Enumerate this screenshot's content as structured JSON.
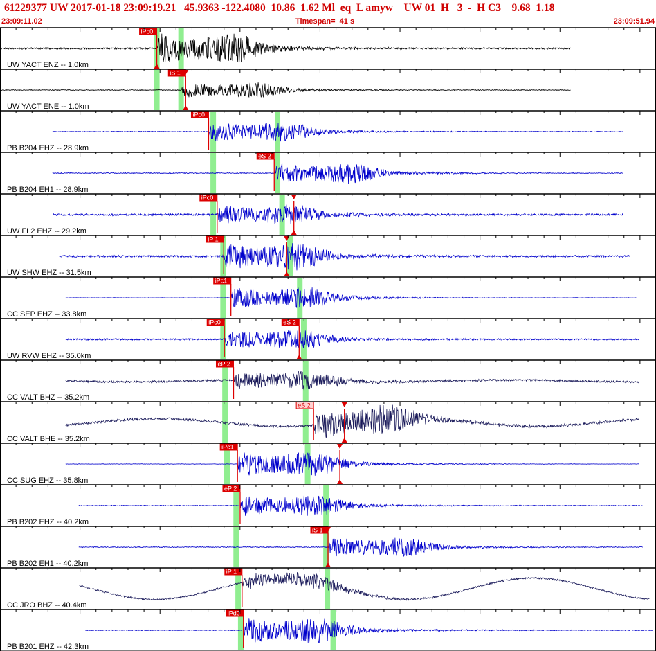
{
  "header": {
    "event_line": "61229377 UW 2017-01-18 23:09:19.21   45.9363 -122.4080  10.86  1.62 Ml  eq  L amyw    UW 01  H   3  -  H C3    9.68  1.18",
    "start_time": "23:09:11.02",
    "timespan": "Timespan=  41 s",
    "end_time": "23:09:51.94"
  },
  "colors": {
    "header_text": "#d00000",
    "pick_red": "#dd0000",
    "pick_bg_light": "#ffd0d0",
    "trace_black": "#000000",
    "trace_blue": "#0000cc",
    "trace_navy": "#1a1a5a",
    "window_green": "#90ee90"
  },
  "panels": [
    {
      "label": "UW YACT ENZ -- 1.0km",
      "trace": "black",
      "trace_start": 0.0,
      "trace_end": 0.87,
      "noise": 0.04,
      "onset": 0.239,
      "amp": 0.85,
      "lowfreq": 0,
      "green": [
        0.239,
        0.276
      ],
      "picks": [
        {
          "text": "iPc0",
          "pos": 0.239,
          "tri_top": false,
          "tri_bottom": true,
          "light": false
        }
      ]
    },
    {
      "label": "UW YACT ENE -- 1.0km",
      "trace": "black",
      "trace_start": 0.0,
      "trace_end": 0.87,
      "noise": 0.02,
      "onset": 0.276,
      "amp": 0.45,
      "lowfreq": 0,
      "green": [
        0.239,
        0.276
      ],
      "picks": [
        {
          "text": "iS 1",
          "pos": 0.283,
          "tri_top": true,
          "tri_bottom": true,
          "light": false
        }
      ]
    },
    {
      "label": "PB B204 EHZ -- 28.9km",
      "trace": "blue",
      "trace_start": 0.08,
      "trace_end": 0.95,
      "noise": 0.02,
      "onset": 0.318,
      "amp": 0.55,
      "lowfreq": 0,
      "green": [
        0.325,
        0.423
      ],
      "picks": [
        {
          "text": "iPc0",
          "pos": 0.318,
          "tri_top": false,
          "tri_bottom": false,
          "light": false
        }
      ]
    },
    {
      "label": "PB B204 EH1 -- 28.9km",
      "trace": "blue",
      "trace_start": 0.08,
      "trace_end": 0.95,
      "noise": 0.02,
      "onset": 0.418,
      "amp": 0.6,
      "lowfreq": 0,
      "green": [
        0.325,
        0.423
      ],
      "picks": [
        {
          "text": "eS 2",
          "pos": 0.418,
          "tri_top": false,
          "tri_bottom": false,
          "light": false
        }
      ]
    },
    {
      "label": "UW FL2 EHZ -- 29.2km",
      "trace": "blue",
      "trace_start": 0.08,
      "trace_end": 0.95,
      "noise": 0.05,
      "onset": 0.331,
      "amp": 0.55,
      "lowfreq": 0,
      "green": [
        0.325,
        0.43
      ],
      "picks": [
        {
          "text": "iPc0",
          "pos": 0.331,
          "tri_top": false,
          "tri_bottom": false,
          "light": false
        },
        {
          "text": "",
          "pos": 0.448,
          "tri_top": true,
          "tri_bottom": true,
          "light": false
        }
      ]
    },
    {
      "label": "UW SHW EHZ -- 31.5km",
      "trace": "blue",
      "trace_start": 0.09,
      "trace_end": 0.96,
      "noise": 0.05,
      "onset": 0.341,
      "amp": 0.75,
      "lowfreq": 0,
      "green": [
        0.34,
        0.442
      ],
      "picks": [
        {
          "text": "iP 1",
          "pos": 0.341,
          "tri_top": false,
          "tri_bottom": false,
          "light": false
        },
        {
          "text": "",
          "pos": 0.437,
          "tri_top": true,
          "tri_bottom": true,
          "light": false
        }
      ]
    },
    {
      "label": "CC SEP EHZ -- 33.8km",
      "trace": "blue",
      "trace_start": 0.1,
      "trace_end": 0.97,
      "noise": 0.01,
      "onset": 0.352,
      "amp": 0.6,
      "lowfreq": 0,
      "green": [
        0.34,
        0.457
      ],
      "picks": [
        {
          "text": "iPc1",
          "pos": 0.352,
          "tri_top": false,
          "tri_bottom": false,
          "light": false
        }
      ]
    },
    {
      "label": "UW RVW EHZ -- 35.0km",
      "trace": "blue",
      "trace_start": 0.1,
      "trace_end": 0.975,
      "noise": 0.04,
      "onset": 0.342,
      "amp": 0.55,
      "lowfreq": 0,
      "green": [
        0.34,
        0.463
      ],
      "picks": [
        {
          "text": "iPc0",
          "pos": 0.342,
          "tri_top": false,
          "tri_bottom": false,
          "light": false
        },
        {
          "text": "eS 2",
          "pos": 0.456,
          "tri_top": false,
          "tri_bottom": true,
          "light": false
        }
      ]
    },
    {
      "label": "CC VALT BHZ -- 35.2km",
      "trace": "navy",
      "trace_start": 0.1,
      "trace_end": 0.975,
      "noise": 0.05,
      "onset": 0.356,
      "amp": 0.55,
      "lowfreq": 0.06,
      "green": [
        0.343,
        0.466
      ],
      "picks": [
        {
          "text": "eP 2",
          "pos": 0.356,
          "tri_top": false,
          "tri_bottom": false,
          "light": false
        }
      ]
    },
    {
      "label": "CC VALT BHE -- 35.2km",
      "trace": "navy",
      "trace_start": 0.1,
      "trace_end": 0.975,
      "noise": 0.06,
      "onset": 0.478,
      "amp": 0.8,
      "lowfreq": 0.25,
      "green": [
        0.343,
        0.466
      ],
      "picks": [
        {
          "text": "eS 2",
          "pos": 0.478,
          "tri_top": false,
          "tri_bottom": false,
          "light": true
        },
        {
          "text": "",
          "pos": 0.525,
          "tri_top": true,
          "tri_bottom": true,
          "light": false
        }
      ]
    },
    {
      "label": "CC SUG EHZ -- 35.8km",
      "trace": "blue",
      "trace_start": 0.1,
      "trace_end": 0.975,
      "noise": 0.01,
      "onset": 0.362,
      "amp": 0.7,
      "lowfreq": 0,
      "green": [
        0.346,
        0.469
      ],
      "picks": [
        {
          "text": "iPc1",
          "pos": 0.362,
          "tri_top": false,
          "tri_bottom": false,
          "light": false
        },
        {
          "text": "",
          "pos": 0.518,
          "tri_top": true,
          "tri_bottom": true,
          "light": false
        }
      ]
    },
    {
      "label": "PB B202 EHZ -- 40.2km",
      "trace": "blue",
      "trace_start": 0.12,
      "trace_end": 0.98,
      "noise": 0.02,
      "onset": 0.366,
      "amp": 0.6,
      "lowfreq": 0,
      "green": [
        0.36,
        0.497
      ],
      "picks": [
        {
          "text": "eP 2",
          "pos": 0.366,
          "tri_top": false,
          "tri_bottom": false,
          "light": false
        }
      ]
    },
    {
      "label": "PB B202 EH1 -- 40.2km",
      "trace": "blue",
      "trace_start": 0.12,
      "trace_end": 0.98,
      "noise": 0.02,
      "onset": 0.5,
      "amp": 0.55,
      "lowfreq": 0,
      "green": [
        0.36,
        0.497
      ],
      "picks": [
        {
          "text": "iS 1",
          "pos": 0.5,
          "tri_top": true,
          "tri_bottom": true,
          "light": false
        }
      ]
    },
    {
      "label": "CC JRO BHZ -- 40.4km",
      "trace": "navy",
      "trace_start": 0.12,
      "trace_end": 0.99,
      "noise": 0.04,
      "onset": 0.369,
      "amp": 0.45,
      "lowfreq": 0.7,
      "green": [
        0.363,
        0.499
      ],
      "picks": [
        {
          "text": "iP 1",
          "pos": 0.369,
          "tri_top": false,
          "tri_bottom": false,
          "light": false
        }
      ]
    },
    {
      "label": "PB B201 EHZ -- 42.3km",
      "trace": "blue",
      "trace_start": 0.13,
      "trace_end": 0.995,
      "noise": 0.02,
      "onset": 0.371,
      "amp": 0.75,
      "lowfreq": 0,
      "green": [
        0.367,
        0.508
      ],
      "picks": [
        {
          "text": "iPd0",
          "pos": 0.371,
          "tri_top": false,
          "tri_bottom": false,
          "light": false
        }
      ]
    }
  ]
}
